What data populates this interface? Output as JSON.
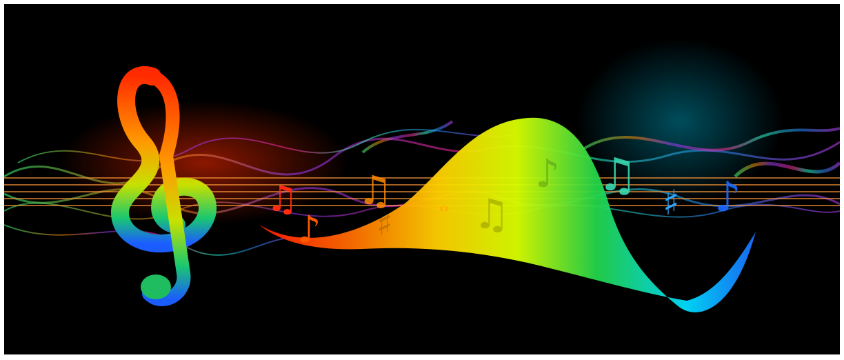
{
  "artwork": {
    "subject": "",
    "background_color": "#000000",
    "frame_color": "#ffffff",
    "palette": [
      "#ff1a00",
      "#ff6a00",
      "#ffd000",
      "#f5ff00",
      "#7dff2a",
      "#18e07a",
      "#00e0ff",
      "#1a6bff",
      "#8a2bff",
      "#ff2aa0"
    ],
    "icons": [
      "treble-clef-icon",
      "eighth-note-icon",
      "beamed-notes-icon",
      "sharp-sign-icon",
      "whole-note-icon",
      "smoke-wave-decoration"
    ]
  }
}
